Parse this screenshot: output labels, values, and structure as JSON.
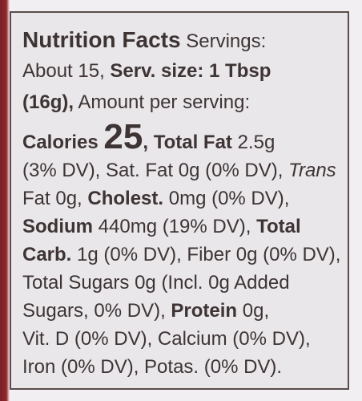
{
  "label": {
    "lines": [
      [
        {
          "text": "Nutrition Facts",
          "style": "title"
        },
        {
          "text": " Servings:",
          "style": "normal"
        }
      ],
      [
        {
          "text": "About 15, ",
          "style": "normal"
        },
        {
          "text": "Serv. size: 1 Tbsp",
          "style": "bold"
        }
      ],
      [
        {
          "text": "(16g),",
          "style": "bold"
        },
        {
          "text": " Amount per serving:",
          "style": "normal"
        }
      ],
      [
        {
          "text": "Calories ",
          "style": "bold"
        },
        {
          "text": "25",
          "style": "huge"
        },
        {
          "text": ", ",
          "style": "bold"
        },
        {
          "text": "Total Fat",
          "style": "bold"
        },
        {
          "text": " 2.5g",
          "style": "normal"
        }
      ],
      [
        {
          "text": "(3% DV), Sat. Fat 0g (0% DV), ",
          "style": "normal"
        },
        {
          "text": "Trans",
          "style": "italic"
        }
      ],
      [
        {
          "text": "Fat 0g, ",
          "style": "normal"
        },
        {
          "text": "Cholest.",
          "style": "bold"
        },
        {
          "text": " 0mg (0% DV),",
          "style": "normal"
        }
      ],
      [
        {
          "text": "Sodium",
          "style": "bold"
        },
        {
          "text": " 440mg (19% DV), ",
          "style": "normal"
        },
        {
          "text": "Total",
          "style": "bold"
        }
      ],
      [
        {
          "text": "Carb.",
          "style": "bold"
        },
        {
          "text": " 1g (0% DV), Fiber 0g (0% DV),",
          "style": "normal"
        }
      ],
      [
        {
          "text": "Total Sugars 0g (Incl. 0g Added",
          "style": "normal"
        }
      ],
      [
        {
          "text": "Sugars, 0% DV), ",
          "style": "normal"
        },
        {
          "text": "Protein",
          "style": "bold"
        },
        {
          "text": " 0g,",
          "style": "normal"
        }
      ],
      [
        {
          "text": "Vit. D (0% DV), Calcium (0% DV),",
          "style": "normal"
        }
      ],
      [
        {
          "text": "Iron (0% DV), Potas. (0% DV).",
          "style": "normal"
        }
      ]
    ]
  }
}
